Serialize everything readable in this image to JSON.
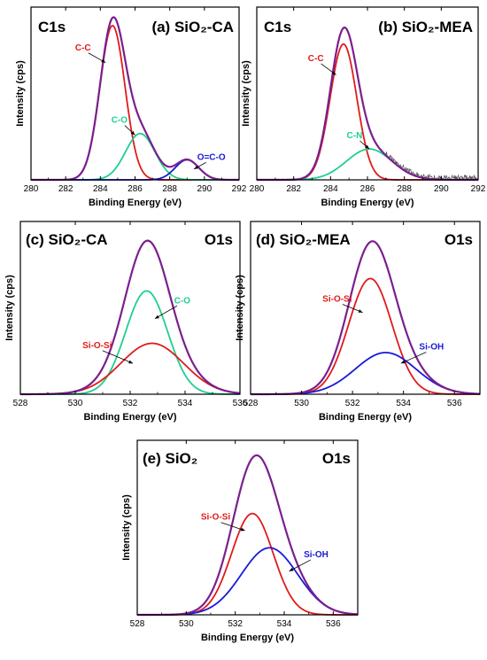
{
  "colors": {
    "envelope": "#7a1f8e",
    "red": "#e01b1b",
    "green": "#1fcf8f",
    "blue": "#1a1ad6",
    "raw": "#555555"
  },
  "chart_data": [
    {
      "id": "a",
      "type": "line",
      "title": "(a) SiO₂-CA",
      "corner_label": "C1s",
      "xlabel": "Binding Energy (eV)",
      "ylabel": "Intensity (cps)",
      "xlim": [
        280,
        292
      ],
      "x_ticks": [
        280,
        282,
        284,
        286,
        288,
        290,
        292
      ],
      "y_ticks_shown": false,
      "components": [
        {
          "name": "C-C",
          "color": "red",
          "center": 284.7,
          "fwhm": 1.7,
          "height": 1.0
        },
        {
          "name": "C-O",
          "color": "green",
          "center": 286.3,
          "fwhm": 2.0,
          "height": 0.3
        },
        {
          "name": "O=C-O",
          "color": "blue",
          "center": 289.0,
          "fwhm": 1.6,
          "height": 0.13
        }
      ],
      "envelope": true,
      "raw_data": false,
      "annotations": [
        {
          "text": "C-C",
          "color": "red",
          "x": 283.0,
          "y": 0.84,
          "arrow_to": [
            284.3,
            0.76
          ]
        },
        {
          "text": "C-O",
          "color": "green",
          "x": 285.1,
          "y": 0.37,
          "arrow_to": [
            286.0,
            0.29
          ]
        },
        {
          "text": "O=C-O",
          "color": "blue",
          "x": 290.4,
          "y": 0.13,
          "arrow_to": [
            289.4,
            0.07
          ]
        }
      ]
    },
    {
      "id": "b",
      "type": "line",
      "title": "(b) SiO₂-MEA",
      "corner_label": "C1s",
      "xlabel": "Binding Energy (eV)",
      "ylabel": "Intensity (cps)",
      "xlim": [
        280,
        292
      ],
      "x_ticks": [
        280,
        282,
        284,
        286,
        288,
        290,
        292
      ],
      "y_ticks_shown": false,
      "components": [
        {
          "name": "C-C",
          "color": "red",
          "center": 284.7,
          "fwhm": 1.7,
          "height": 0.88
        },
        {
          "name": "C-N",
          "color": "green",
          "center": 286.1,
          "fwhm": 2.9,
          "height": 0.2
        }
      ],
      "envelope": true,
      "raw_data": true,
      "annotations": [
        {
          "text": "C-C",
          "color": "red",
          "x": 283.2,
          "y": 0.77,
          "arrow_to": [
            284.3,
            0.68
          ]
        },
        {
          "text": "C-N",
          "color": "green",
          "x": 285.3,
          "y": 0.27,
          "arrow_to": [
            286.1,
            0.2
          ]
        }
      ]
    },
    {
      "id": "c",
      "type": "line",
      "title": "(c) SiO₂-CA",
      "corner_label": "O1s",
      "xlabel": "Binding Energy (eV)",
      "ylabel": "Intensity (cps)",
      "xlim": [
        528,
        536
      ],
      "x_ticks": [
        528,
        530,
        532,
        534,
        536
      ],
      "y_ticks_shown": false,
      "components": [
        {
          "name": "C-O",
          "color": "green",
          "center": 532.6,
          "fwhm": 1.8,
          "height": 0.67
        },
        {
          "name": "Si-O-Si",
          "color": "red",
          "center": 532.8,
          "fwhm": 2.7,
          "height": 0.33
        }
      ],
      "envelope": true,
      "raw_data": false,
      "annotations": [
        {
          "text": "C-O",
          "color": "green",
          "x": 533.9,
          "y": 0.59,
          "arrow_to": [
            532.9,
            0.49
          ]
        },
        {
          "text": "Si-O-Si",
          "color": "red",
          "x": 530.8,
          "y": 0.3,
          "arrow_to": [
            532.1,
            0.2
          ]
        }
      ]
    },
    {
      "id": "d",
      "type": "line",
      "title": "(d) SiO₂-MEA",
      "corner_label": "O1s",
      "xlabel": "Binding Energy (eV)",
      "ylabel": "Intensity (cps)",
      "xlim": [
        528,
        537
      ],
      "x_ticks": [
        528,
        530,
        532,
        534,
        536
      ],
      "y_ticks_shown": false,
      "components": [
        {
          "name": "Si-O-Si",
          "color": "red",
          "center": 532.7,
          "fwhm": 2.0,
          "height": 0.75
        },
        {
          "name": "Si-OH",
          "color": "blue",
          "center": 533.3,
          "fwhm": 2.8,
          "height": 0.27
        }
      ],
      "envelope": true,
      "raw_data": false,
      "annotations": [
        {
          "text": "Si-O-Si",
          "color": "red",
          "x": 531.4,
          "y": 0.6,
          "arrow_to": [
            532.4,
            0.53
          ]
        },
        {
          "text": "Si-OH",
          "color": "blue",
          "x": 535.1,
          "y": 0.29,
          "arrow_to": [
            533.9,
            0.2
          ]
        }
      ]
    },
    {
      "id": "e",
      "type": "line",
      "title": "(e) SiO₂",
      "corner_label": "O1s",
      "xlabel": "Binding Energy (eV)",
      "ylabel": "Intensity (cps)",
      "xlim": [
        528,
        537
      ],
      "x_ticks": [
        528,
        530,
        532,
        534,
        536
      ],
      "y_ticks_shown": false,
      "components": [
        {
          "name": "Si-O-Si",
          "color": "red",
          "center": 532.7,
          "fwhm": 2.0,
          "height": 0.65
        },
        {
          "name": "Si-OH",
          "color": "blue",
          "center": 533.4,
          "fwhm": 2.7,
          "height": 0.43
        }
      ],
      "envelope": true,
      "raw_data": false,
      "annotations": [
        {
          "text": "Si-O-Si",
          "color": "red",
          "x": 531.2,
          "y": 0.61,
          "arrow_to": [
            532.4,
            0.54
          ]
        },
        {
          "text": "Si-OH",
          "color": "blue",
          "x": 535.3,
          "y": 0.37,
          "arrow_to": [
            534.2,
            0.28
          ]
        }
      ]
    }
  ]
}
